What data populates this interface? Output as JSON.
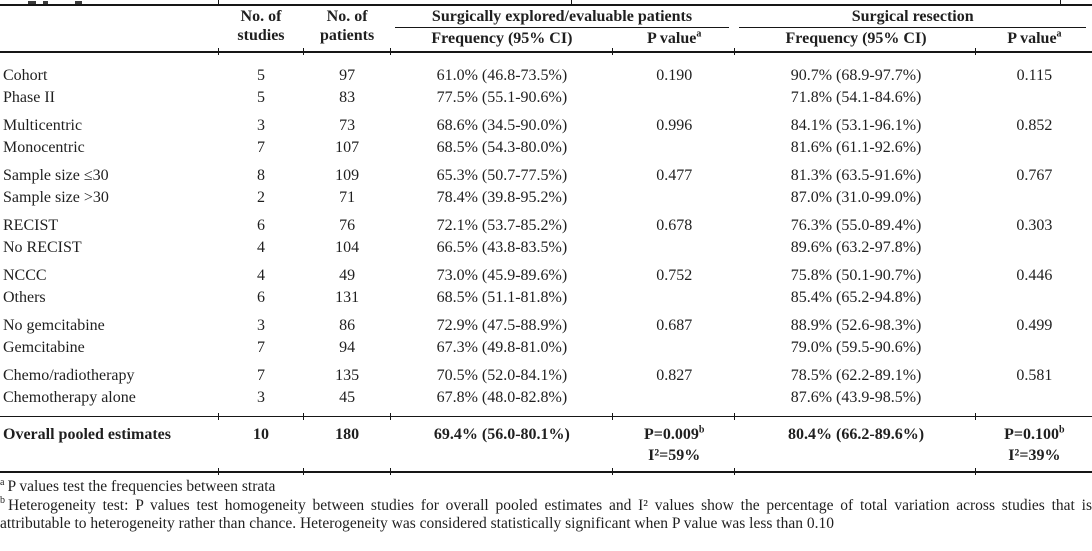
{
  "ink_color": "#161616",
  "background_color": "#ffffff",
  "header": {
    "studies_line1": "No. of",
    "studies_line2": "studies",
    "patients_line1": "No. of",
    "patients_line2": "patients",
    "group1_title": "Surgically explored/evaluable patients",
    "group2_title": "Surgical resection",
    "freq_header": "Frequency (95% CI)",
    "pvalue_header": "P value",
    "pvalue_sup": "a"
  },
  "rows": [
    {
      "label": "Cohort",
      "studies": "5",
      "patients": "97",
      "freq1": "61.0% (46.8-73.5%)",
      "p1": "0.190",
      "freq2": "90.7% (68.9-97.7%)",
      "p2": "0.115"
    },
    {
      "label": "Phase II",
      "studies": "5",
      "patients": "83",
      "freq1": "77.5% (55.1-90.6%)",
      "p1": "",
      "freq2": "71.8% (54.1-84.6%)",
      "p2": ""
    },
    {
      "label": "Multicentric",
      "studies": "3",
      "patients": "73",
      "freq1": "68.6% (34.5-90.0%)",
      "p1": "0.996",
      "freq2": "84.1% (53.1-96.1%)",
      "p2": "0.852"
    },
    {
      "label": "Monocentric",
      "studies": "7",
      "patients": "107",
      "freq1": "68.5% (54.3-80.0%)",
      "p1": "",
      "freq2": "81.6% (61.1-92.6%)",
      "p2": ""
    },
    {
      "label": "Sample size ≤30",
      "studies": "8",
      "patients": "109",
      "freq1": "65.3% (50.7-77.5%)",
      "p1": "0.477",
      "freq2": "81.3% (63.5-91.6%)",
      "p2": "0.767"
    },
    {
      "label": "Sample size >30",
      "studies": "2",
      "patients": "71",
      "freq1": "78.4% (39.8-95.2%)",
      "p1": "",
      "freq2": "87.0% (31.0-99.0%)",
      "p2": ""
    },
    {
      "label": "RECIST",
      "studies": "6",
      "patients": "76",
      "freq1": "72.1% (53.7-85.2%)",
      "p1": "0.678",
      "freq2": "76.3% (55.0-89.4%)",
      "p2": "0.303"
    },
    {
      "label": "No RECIST",
      "studies": "4",
      "patients": "104",
      "freq1": "66.5% (43.8-83.5%)",
      "p1": "",
      "freq2": "89.6% (63.2-97.8%)",
      "p2": ""
    },
    {
      "label": "NCCC",
      "studies": "4",
      "patients": "49",
      "freq1": "73.0% (45.9-89.6%)",
      "p1": "0.752",
      "freq2": "75.8% (50.1-90.7%)",
      "p2": "0.446"
    },
    {
      "label": "Others",
      "studies": "6",
      "patients": "131",
      "freq1": "68.5% (51.1-81.8%)",
      "p1": "",
      "freq2": "85.4% (65.2-94.8%)",
      "p2": ""
    },
    {
      "label": "No gemcitabine",
      "studies": "3",
      "patients": "86",
      "freq1": "72.9% (47.5-88.9%)",
      "p1": "0.687",
      "freq2": "88.9% (52.6-98.3%)",
      "p2": "0.499"
    },
    {
      "label": "Gemcitabine",
      "studies": "7",
      "patients": "94",
      "freq1": "67.3% (49.8-81.0%)",
      "p1": "",
      "freq2": "79.0% (59.5-90.6%)",
      "p2": ""
    },
    {
      "label": "Chemo/radiotherapy",
      "studies": "7",
      "patients": "135",
      "freq1": "70.5% (52.0-84.1%)",
      "p1": "0.827",
      "freq2": "78.5% (62.2-89.1%)",
      "p2": "0.581"
    },
    {
      "label": "Chemotherapy alone",
      "studies": "3",
      "patients": "45",
      "freq1": "67.8% (48.0-82.8%)",
      "p1": "",
      "freq2": "87.6% (43.9-98.5%)",
      "p2": ""
    }
  ],
  "overall": {
    "label": "Overall pooled estimates",
    "studies": "10",
    "patients": "180",
    "freq1": "69.4% (56.0-80.1%)",
    "p1": "P=0.009",
    "p1_sup": "b",
    "i2_1": "I²=59%",
    "freq2": "80.4% (66.2-89.6%)",
    "p2": "P=0.100",
    "p2_sup": "b",
    "i2_2": "I²=39%"
  },
  "footnotes": {
    "a_sup": "a",
    "a_text": "P values test the frequencies between strata",
    "b_sup": "b",
    "b_text": "Heterogeneity test: P values test homogeneity between studies for overall pooled estimates and I² values show the percentage of total variation across studies that is attributable to heterogeneity rather than chance. Heterogeneity was considered statistically significant when P value was less than 0.10"
  }
}
